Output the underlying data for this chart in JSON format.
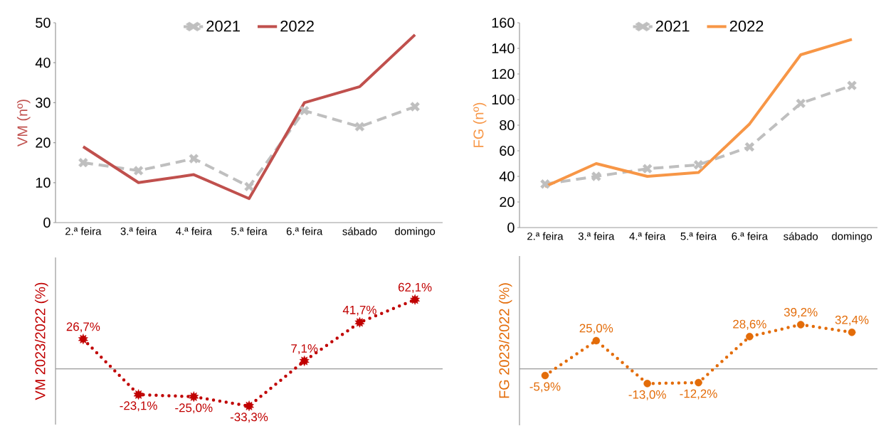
{
  "chart_data": [
    {
      "type": "line",
      "ylabel": "VM (nº)",
      "categories": [
        "2.ª feira",
        "3.ª feira",
        "4.ª feira",
        "5.ª feira",
        "6.ª feira",
        "sábado",
        "domingo"
      ],
      "ylim": [
        0,
        50
      ],
      "yticks": [
        0,
        10,
        20,
        30,
        40,
        50
      ],
      "legend": "top",
      "grid": false,
      "series": [
        {
          "name": "2021",
          "color": "#bfbfbf",
          "line_style": "dashed",
          "marker": "cross",
          "values": [
            15,
            13,
            16,
            9,
            28,
            24,
            29
          ]
        },
        {
          "name": "2022",
          "color": "#c0504d",
          "line_style": "solid",
          "marker": "none",
          "values": [
            19,
            10,
            12,
            6,
            30,
            34,
            47
          ]
        }
      ]
    },
    {
      "type": "line",
      "ylabel": "FG (nº)",
      "categories": [
        "2.ª feira",
        "3.ª feira",
        "4.ª feira",
        "5.ª feira",
        "6.ª feira",
        "sábado",
        "domingo"
      ],
      "ylim": [
        0,
        160
      ],
      "yticks": [
        0,
        20,
        40,
        60,
        80,
        100,
        120,
        140,
        160
      ],
      "legend": "top",
      "grid": false,
      "series": [
        {
          "name": "2021",
          "color": "#bfbfbf",
          "line_style": "dashed",
          "marker": "cross",
          "values": [
            34,
            40,
            46,
            49,
            63,
            97,
            111
          ]
        },
        {
          "name": "2022",
          "color": "#f79646",
          "line_style": "solid",
          "marker": "none",
          "values": [
            32,
            50,
            40,
            43,
            81,
            135,
            147
          ]
        }
      ]
    },
    {
      "type": "line",
      "ylabel": "VM 2023/2022 (%)",
      "categories": [
        null,
        null,
        null,
        null,
        null,
        null,
        null
      ],
      "ylim": [
        -50,
        100
      ],
      "grid": false,
      "series": [
        {
          "color": "#c00000",
          "line_style": "dotted",
          "marker": "star",
          "values": [
            26.7,
            -23.1,
            -25.0,
            -33.3,
            7.1,
            41.7,
            62.1
          ],
          "value_labels": [
            "26,7%",
            "-23,1%",
            "-25,0%",
            "-33,3%",
            "7,1%",
            "41,7%",
            "62,1%"
          ]
        }
      ]
    },
    {
      "type": "line",
      "ylabel": "FG 2023/2022 (%)",
      "categories": [
        null,
        null,
        null,
        null,
        null,
        null,
        null
      ],
      "ylim": [
        -50,
        100
      ],
      "grid": false,
      "series": [
        {
          "color": "#e36c09",
          "line_style": "dotted",
          "marker": "circle",
          "values": [
            -5.9,
            25.0,
            -13.0,
            -12.2,
            28.6,
            39.2,
            32.4
          ],
          "value_labels": [
            "-5,9%",
            "25,0%",
            "-13,0%",
            "-12,2%",
            "28,6%",
            "39,2%",
            "32,4%"
          ]
        }
      ]
    }
  ]
}
